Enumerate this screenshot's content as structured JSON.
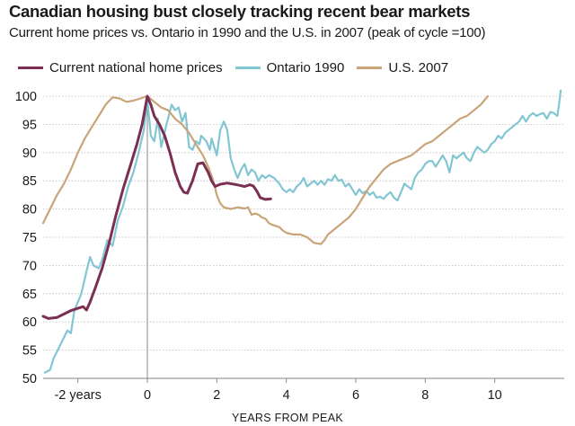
{
  "chart_data": {
    "type": "line",
    "title": "Canadian housing bust closely tracking recent bear markets",
    "subtitle": "Current home prices vs. Ontario in 1990 and the U.S. in 2007 (peak of cycle =100)",
    "xlabel": "YEARS FROM PEAK",
    "ylabel": "",
    "xlim": [
      -3,
      12
    ],
    "ylim": [
      50,
      100
    ],
    "y_ticks": [
      50,
      55,
      60,
      65,
      70,
      75,
      80,
      85,
      90,
      95,
      100
    ],
    "x_ticks": [
      {
        "value": -2,
        "label": "-2 years"
      },
      {
        "value": 0,
        "label": "0"
      },
      {
        "value": 2,
        "label": "2"
      },
      {
        "value": 4,
        "label": "4"
      },
      {
        "value": 6,
        "label": "6"
      },
      {
        "value": 8,
        "label": "8"
      },
      {
        "value": 10,
        "label": "10"
      }
    ],
    "grid": true,
    "legend_position": "top-left",
    "series": [
      {
        "name": "Current national home prices",
        "color": "#7b2f52",
        "points": [
          [
            -3.0,
            61.0
          ],
          [
            -2.85,
            60.6
          ],
          [
            -2.6,
            60.8
          ],
          [
            -2.4,
            61.4
          ],
          [
            -2.2,
            62.0
          ],
          [
            -2.0,
            62.4
          ],
          [
            -1.85,
            62.7
          ],
          [
            -1.75,
            62.1
          ],
          [
            -1.65,
            63.5
          ],
          [
            -1.5,
            66.0
          ],
          [
            -1.3,
            69.5
          ],
          [
            -1.1,
            74.0
          ],
          [
            -0.9,
            79.0
          ],
          [
            -0.7,
            83.5
          ],
          [
            -0.5,
            87.5
          ],
          [
            -0.3,
            91.5
          ],
          [
            -0.15,
            95.0
          ],
          [
            0.0,
            100.0
          ],
          [
            0.1,
            98.5
          ],
          [
            0.2,
            96.5
          ],
          [
            0.35,
            95.0
          ],
          [
            0.5,
            93.0
          ],
          [
            0.65,
            90.0
          ],
          [
            0.8,
            86.5
          ],
          [
            0.95,
            84.0
          ],
          [
            1.05,
            83.0
          ],
          [
            1.15,
            82.8
          ],
          [
            1.3,
            85.0
          ],
          [
            1.45,
            88.0
          ],
          [
            1.6,
            88.2
          ],
          [
            1.75,
            86.5
          ],
          [
            1.85,
            85.0
          ],
          [
            1.95,
            84.0
          ],
          [
            2.1,
            84.4
          ],
          [
            2.3,
            84.6
          ],
          [
            2.5,
            84.4
          ],
          [
            2.65,
            84.2
          ],
          [
            2.8,
            84.0
          ],
          [
            2.95,
            84.3
          ],
          [
            3.05,
            84.1
          ],
          [
            3.15,
            83.2
          ],
          [
            3.25,
            82.0
          ],
          [
            3.4,
            81.7
          ],
          [
            3.55,
            81.8
          ]
        ]
      },
      {
        "name": "Ontario 1990",
        "color": "#82c6d3",
        "points": [
          [
            -2.95,
            51.0
          ],
          [
            -2.8,
            51.5
          ],
          [
            -2.7,
            53.5
          ],
          [
            -2.5,
            56.0
          ],
          [
            -2.3,
            58.5
          ],
          [
            -2.2,
            58.0
          ],
          [
            -2.1,
            62.0
          ],
          [
            -1.9,
            65.0
          ],
          [
            -1.75,
            69.0
          ],
          [
            -1.65,
            71.5
          ],
          [
            -1.55,
            70.0
          ],
          [
            -1.4,
            69.5
          ],
          [
            -1.3,
            71.0
          ],
          [
            -1.15,
            74.5
          ],
          [
            -1.0,
            73.5
          ],
          [
            -0.85,
            78.0
          ],
          [
            -0.7,
            80.5
          ],
          [
            -0.55,
            84.0
          ],
          [
            -0.4,
            86.5
          ],
          [
            -0.25,
            90.0
          ],
          [
            -0.1,
            94.0
          ],
          [
            0.0,
            99.5
          ],
          [
            0.1,
            93.0
          ],
          [
            0.2,
            92.0
          ],
          [
            0.3,
            96.0
          ],
          [
            0.4,
            91.0
          ],
          [
            0.55,
            95.0
          ],
          [
            0.7,
            98.5
          ],
          [
            0.8,
            97.5
          ],
          [
            0.9,
            98.0
          ],
          [
            1.0,
            95.5
          ],
          [
            1.1,
            97.0
          ],
          [
            1.2,
            91.0
          ],
          [
            1.3,
            90.5
          ],
          [
            1.4,
            92.0
          ],
          [
            1.5,
            91.5
          ],
          [
            1.55,
            93.0
          ],
          [
            1.7,
            92.0
          ],
          [
            1.8,
            90.5
          ],
          [
            1.85,
            92.5
          ],
          [
            2.0,
            89.5
          ],
          [
            2.1,
            94.0
          ],
          [
            2.2,
            95.5
          ],
          [
            2.3,
            94.0
          ],
          [
            2.4,
            89.0
          ],
          [
            2.5,
            87.0
          ],
          [
            2.6,
            85.5
          ],
          [
            2.7,
            87.0
          ],
          [
            2.8,
            88.0
          ],
          [
            2.9,
            86.0
          ],
          [
            3.0,
            87.0
          ],
          [
            3.1,
            86.5
          ],
          [
            3.2,
            85.0
          ],
          [
            3.3,
            86.0
          ],
          [
            3.4,
            85.5
          ],
          [
            3.5,
            86.0
          ],
          [
            3.65,
            85.5
          ],
          [
            3.8,
            84.5
          ],
          [
            3.9,
            83.5
          ],
          [
            4.0,
            83.0
          ],
          [
            4.1,
            83.5
          ],
          [
            4.2,
            83.0
          ],
          [
            4.3,
            84.0
          ],
          [
            4.4,
            84.5
          ],
          [
            4.5,
            85.5
          ],
          [
            4.6,
            84.0
          ],
          [
            4.7,
            84.5
          ],
          [
            4.8,
            85.0
          ],
          [
            4.9,
            84.3
          ],
          [
            5.0,
            85.0
          ],
          [
            5.1,
            84.3
          ],
          [
            5.2,
            85.3
          ],
          [
            5.3,
            85.0
          ],
          [
            5.4,
            86.0
          ],
          [
            5.5,
            85.0
          ],
          [
            5.6,
            85.2
          ],
          [
            5.7,
            84.0
          ],
          [
            5.8,
            84.5
          ],
          [
            5.9,
            83.5
          ],
          [
            6.0,
            82.5
          ],
          [
            6.1,
            83.5
          ],
          [
            6.2,
            82.8
          ],
          [
            6.3,
            83.2
          ],
          [
            6.4,
            82.5
          ],
          [
            6.5,
            83.0
          ],
          [
            6.6,
            82.0
          ],
          [
            6.7,
            82.2
          ],
          [
            6.8,
            81.8
          ],
          [
            6.9,
            82.5
          ],
          [
            7.0,
            83.0
          ],
          [
            7.1,
            82.0
          ],
          [
            7.2,
            81.5
          ],
          [
            7.3,
            83.0
          ],
          [
            7.4,
            84.5
          ],
          [
            7.5,
            84.0
          ],
          [
            7.6,
            83.5
          ],
          [
            7.7,
            85.5
          ],
          [
            7.8,
            86.5
          ],
          [
            7.9,
            87.0
          ],
          [
            8.0,
            88.0
          ],
          [
            8.1,
            88.5
          ],
          [
            8.2,
            88.5
          ],
          [
            8.3,
            87.5
          ],
          [
            8.4,
            88.5
          ],
          [
            8.5,
            89.5
          ],
          [
            8.6,
            88.5
          ],
          [
            8.7,
            86.5
          ],
          [
            8.8,
            89.5
          ],
          [
            8.9,
            89.0
          ],
          [
            9.0,
            89.5
          ],
          [
            9.1,
            90.0
          ],
          [
            9.2,
            89.0
          ],
          [
            9.3,
            88.5
          ],
          [
            9.4,
            90.0
          ],
          [
            9.5,
            91.0
          ],
          [
            9.6,
            90.5
          ],
          [
            9.7,
            90.0
          ],
          [
            9.8,
            90.5
          ],
          [
            9.9,
            91.5
          ],
          [
            10.0,
            92.0
          ],
          [
            10.1,
            93.0
          ],
          [
            10.2,
            92.5
          ],
          [
            10.3,
            93.5
          ],
          [
            10.4,
            94.0
          ],
          [
            10.5,
            94.5
          ],
          [
            10.6,
            95.0
          ],
          [
            10.7,
            95.5
          ],
          [
            10.8,
            96.5
          ],
          [
            10.9,
            95.5
          ],
          [
            11.0,
            96.5
          ],
          [
            11.1,
            97.0
          ],
          [
            11.2,
            96.5
          ],
          [
            11.3,
            96.8
          ],
          [
            11.4,
            97.0
          ],
          [
            11.5,
            96.0
          ],
          [
            11.6,
            97.2
          ],
          [
            11.7,
            97.0
          ],
          [
            11.8,
            96.5
          ],
          [
            11.85,
            98.5
          ],
          [
            11.9,
            101.0
          ]
        ]
      },
      {
        "name": "U.S. 2007",
        "color": "#c9a479",
        "points": [
          [
            -3.0,
            77.5
          ],
          [
            -2.8,
            80.0
          ],
          [
            -2.6,
            82.5
          ],
          [
            -2.4,
            84.5
          ],
          [
            -2.2,
            87.0
          ],
          [
            -2.0,
            90.0
          ],
          [
            -1.8,
            92.5
          ],
          [
            -1.6,
            94.5
          ],
          [
            -1.4,
            96.5
          ],
          [
            -1.2,
            98.5
          ],
          [
            -1.0,
            99.8
          ],
          [
            -0.8,
            99.6
          ],
          [
            -0.6,
            99.0
          ],
          [
            -0.4,
            99.2
          ],
          [
            -0.2,
            99.6
          ],
          [
            0.0,
            100.0
          ],
          [
            0.2,
            99.0
          ],
          [
            0.4,
            98.0
          ],
          [
            0.6,
            97.5
          ],
          [
            0.8,
            96.0
          ],
          [
            1.0,
            95.0
          ],
          [
            1.2,
            93.5
          ],
          [
            1.4,
            91.5
          ],
          [
            1.6,
            89.5
          ],
          [
            1.75,
            87.5
          ],
          [
            1.9,
            85.0
          ],
          [
            2.0,
            82.5
          ],
          [
            2.1,
            81.0
          ],
          [
            2.2,
            80.3
          ],
          [
            2.4,
            80.0
          ],
          [
            2.6,
            80.3
          ],
          [
            2.8,
            80.1
          ],
          [
            2.9,
            80.3
          ],
          [
            3.0,
            79.0
          ],
          [
            3.1,
            79.2
          ],
          [
            3.2,
            79.0
          ],
          [
            3.3,
            78.5
          ],
          [
            3.4,
            78.3
          ],
          [
            3.5,
            77.5
          ],
          [
            3.6,
            77.2
          ],
          [
            3.7,
            77.0
          ],
          [
            3.8,
            76.8
          ],
          [
            3.9,
            76.2
          ],
          [
            4.0,
            75.8
          ],
          [
            4.2,
            75.5
          ],
          [
            4.4,
            75.5
          ],
          [
            4.6,
            75.0
          ],
          [
            4.8,
            74.0
          ],
          [
            5.0,
            73.8
          ],
          [
            5.1,
            74.5
          ],
          [
            5.2,
            75.5
          ],
          [
            5.4,
            76.5
          ],
          [
            5.6,
            77.5
          ],
          [
            5.8,
            78.5
          ],
          [
            6.0,
            80.0
          ],
          [
            6.2,
            82.0
          ],
          [
            6.4,
            84.0
          ],
          [
            6.6,
            85.5
          ],
          [
            6.8,
            87.0
          ],
          [
            7.0,
            88.0
          ],
          [
            7.2,
            88.5
          ],
          [
            7.4,
            89.0
          ],
          [
            7.6,
            89.5
          ],
          [
            7.8,
            90.5
          ],
          [
            8.0,
            91.5
          ],
          [
            8.2,
            92.0
          ],
          [
            8.4,
            93.0
          ],
          [
            8.6,
            94.0
          ],
          [
            8.8,
            95.0
          ],
          [
            9.0,
            96.0
          ],
          [
            9.2,
            96.5
          ],
          [
            9.4,
            97.5
          ],
          [
            9.6,
            98.5
          ],
          [
            9.8,
            100.0
          ]
        ]
      }
    ]
  }
}
